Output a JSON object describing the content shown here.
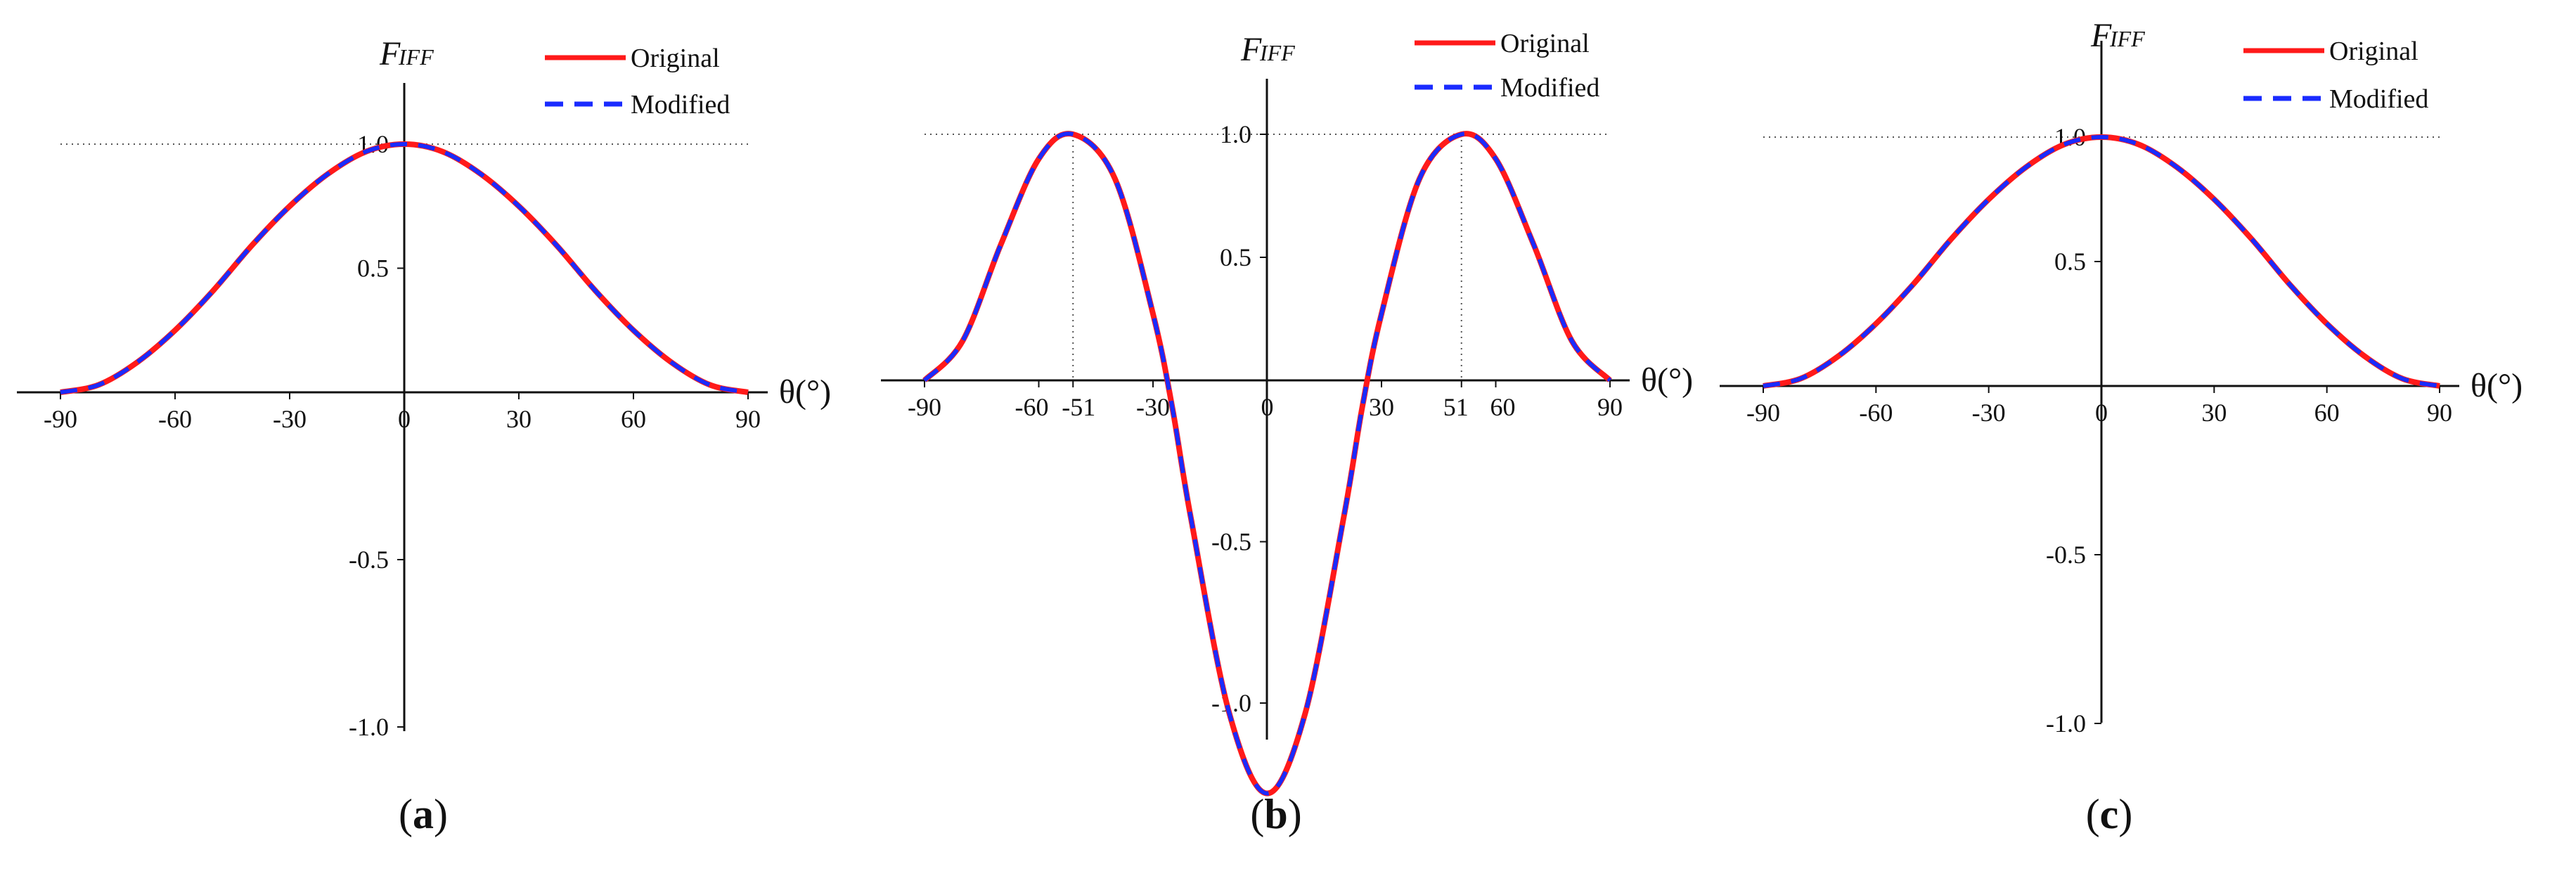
{
  "chart_data": [
    {
      "type": "line",
      "panel_label": "a",
      "y_axis_name": "F",
      "y_axis_sub": "IFF",
      "x_axis_name": "θ(°)",
      "xlim": [
        -90,
        90
      ],
      "ylim": [
        -1.3,
        1.2
      ],
      "x_ticks": [
        "-90",
        "-60",
        "-30",
        "0",
        "30",
        "60",
        "90"
      ],
      "x_tick_values": [
        -90,
        -60,
        -30,
        0,
        30,
        60,
        90
      ],
      "y_ticks": [
        "1.0",
        "0.5",
        "-0.5",
        "-1.0"
      ],
      "y_tick_values": [
        1.0,
        0.5,
        -0.5,
        -1.0
      ],
      "reference_line_y": 1.0,
      "legend": [
        "Original",
        "Modified"
      ],
      "legend_position": "top-right",
      "series": [
        {
          "name": "Original",
          "color": "#ff1a1a",
          "style": "solid",
          "x": [
            -90,
            -80,
            -70,
            -60,
            -50,
            -40,
            -30,
            -20,
            -10,
            0,
            10,
            20,
            30,
            40,
            50,
            60,
            70,
            80,
            90
          ],
          "y": [
            0.0,
            0.03,
            0.12,
            0.25,
            0.41,
            0.59,
            0.75,
            0.88,
            0.97,
            1.0,
            0.97,
            0.88,
            0.75,
            0.59,
            0.41,
            0.25,
            0.12,
            0.03,
            0.0
          ]
        },
        {
          "name": "Modified",
          "color": "#1a2bff",
          "style": "dashed",
          "x": [
            -90,
            -80,
            -70,
            -60,
            -50,
            -40,
            -30,
            -20,
            -10,
            0,
            10,
            20,
            30,
            40,
            50,
            60,
            70,
            80,
            90
          ],
          "y": [
            0.0,
            0.03,
            0.12,
            0.25,
            0.41,
            0.59,
            0.75,
            0.88,
            0.97,
            1.0,
            0.97,
            0.88,
            0.75,
            0.59,
            0.41,
            0.25,
            0.12,
            0.03,
            0.0
          ]
        }
      ]
    },
    {
      "type": "line",
      "panel_label": "b",
      "y_axis_name": "F",
      "y_axis_sub": "IFF",
      "x_axis_name": "θ(°)",
      "xlim": [
        -90,
        90
      ],
      "ylim": [
        -1.32,
        1.22
      ],
      "x_ticks": [
        "-90",
        "-60",
        "-51",
        "-30",
        "0",
        "30",
        "51",
        "60",
        "90"
      ],
      "x_tick_values": [
        -90,
        -60,
        -51,
        -30,
        0,
        30,
        51,
        60,
        90
      ],
      "y_ticks": [
        "1.0",
        "0.5",
        "-0.5",
        "-1.0"
      ],
      "y_tick_values": [
        1.0,
        0.5,
        -0.5,
        -1.0
      ],
      "reference_line_y": 1.0,
      "marker_lines_x": [
        -51,
        51
      ],
      "legend": [
        "Original",
        "Modified"
      ],
      "legend_position": "top-right",
      "series": [
        {
          "name": "Original",
          "color": "#ff1a1a",
          "style": "solid",
          "x": [
            -90,
            -80,
            -70,
            -60,
            -51,
            -40,
            -30,
            -25,
            -20,
            -10,
            0,
            10,
            20,
            25,
            30,
            40,
            51,
            60,
            70,
            80,
            90
          ],
          "y": [
            0.0,
            0.16,
            0.55,
            0.9,
            1.0,
            0.82,
            0.27,
            -0.08,
            -0.43,
            -1.03,
            -1.28,
            -1.03,
            -0.43,
            -0.08,
            0.27,
            0.82,
            1.0,
            0.9,
            0.55,
            0.16,
            0.0
          ]
        },
        {
          "name": "Modified",
          "color": "#1a2bff",
          "style": "dashed",
          "x": [
            -90,
            -80,
            -70,
            -60,
            -51,
            -40,
            -30,
            -25,
            -20,
            -10,
            0,
            10,
            20,
            25,
            30,
            40,
            51,
            60,
            70,
            80,
            90
          ],
          "y": [
            0.0,
            0.16,
            0.55,
            0.9,
            1.0,
            0.82,
            0.27,
            -0.08,
            -0.43,
            -1.03,
            -1.28,
            -1.03,
            -0.43,
            -0.08,
            0.27,
            0.82,
            1.0,
            0.9,
            0.55,
            0.16,
            0.0
          ]
        }
      ]
    },
    {
      "type": "line",
      "panel_label": "c",
      "y_axis_name": "F",
      "y_axis_sub": "IFF",
      "x_axis_name": "θ(°)",
      "xlim": [
        -90,
        90
      ],
      "ylim": [
        -1.35,
        1.25
      ],
      "x_ticks": [
        "-90",
        "-60",
        "-30",
        "0",
        "30",
        "60",
        "90"
      ],
      "x_tick_values": [
        -90,
        -60,
        -30,
        0,
        30,
        60,
        90
      ],
      "y_ticks": [
        "1.0",
        "0.5",
        "-0.5",
        "-1.0"
      ],
      "y_tick_values": [
        1.0,
        0.5,
        -0.5,
        -1.0
      ],
      "reference_line_y": 1.0,
      "legend": [
        "Original",
        "Modified"
      ],
      "legend_position": "top-right",
      "series": [
        {
          "name": "Original",
          "color": "#ff1a1a",
          "style": "solid",
          "x": [
            -90,
            -80,
            -70,
            -60,
            -50,
            -40,
            -30,
            -20,
            -10,
            0,
            10,
            20,
            30,
            40,
            50,
            60,
            70,
            80,
            90
          ],
          "y": [
            0.0,
            0.03,
            0.12,
            0.25,
            0.41,
            0.59,
            0.75,
            0.88,
            0.97,
            1.0,
            0.97,
            0.88,
            0.75,
            0.59,
            0.41,
            0.25,
            0.12,
            0.03,
            0.0
          ]
        },
        {
          "name": "Modified",
          "color": "#1a2bff",
          "style": "dashed",
          "x": [
            -90,
            -80,
            -70,
            -60,
            -50,
            -40,
            -30,
            -20,
            -10,
            0,
            10,
            20,
            30,
            40,
            50,
            60,
            70,
            80,
            90
          ],
          "y": [
            0.0,
            0.03,
            0.12,
            0.25,
            0.41,
            0.59,
            0.75,
            0.88,
            0.97,
            1.0,
            0.97,
            0.88,
            0.75,
            0.59,
            0.41,
            0.25,
            0.12,
            0.03,
            0.0
          ]
        }
      ]
    }
  ]
}
